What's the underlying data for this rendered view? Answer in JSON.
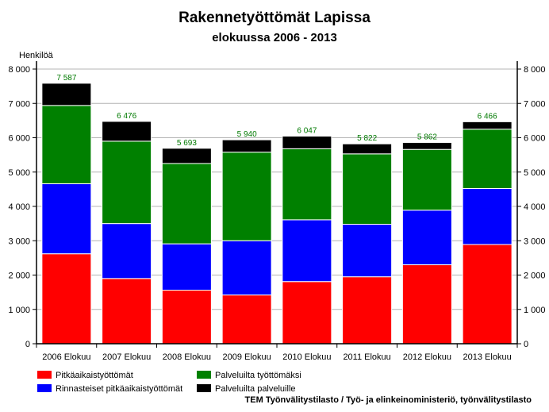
{
  "chart_data": {
    "type": "bar",
    "stacked": true,
    "title": "Rakennetyöttömät Lapissa",
    "subtitle": "elokuussa 2006 - 2013",
    "ylabel": "Henkilöä",
    "ylim": [
      0,
      8000
    ],
    "yticks": [
      0,
      1000,
      2000,
      3000,
      4000,
      5000,
      6000,
      7000,
      8000
    ],
    "ytick_labels": [
      "0",
      "1 000",
      "2 000",
      "3 000",
      "4 000",
      "5 000",
      "6 000",
      "7 000",
      "8 000"
    ],
    "grid": true,
    "legend_position": "bottom",
    "categories": [
      "2006 Elokuu",
      "2007 Elokuu",
      "2008 Elokuu",
      "2009 Elokuu",
      "2010 Elokuu",
      "2011 Elokuu",
      "2012 Elokuu",
      "2013 Elokuu"
    ],
    "series": [
      {
        "name": "Pitkäaikaistyöttömät",
        "color": "#ff0000",
        "values": [
          2620,
          1900,
          1560,
          1420,
          1810,
          1950,
          2300,
          2890
        ]
      },
      {
        "name": "Rinnasteiset pitkäaikaistyöttömät",
        "color": "#0000ff",
        "values": [
          2040,
          1600,
          1350,
          1580,
          1800,
          1530,
          1590,
          1630
        ]
      },
      {
        "name": "Palveluilta työttömäksi",
        "color": "#008000",
        "values": [
          2280,
          2400,
          2340,
          2580,
          2070,
          2050,
          1770,
          1730
        ]
      },
      {
        "name": "Palveluilta palveluille",
        "color": "#000000",
        "values": [
          647,
          576,
          443,
          360,
          367,
          292,
          202,
          216
        ]
      }
    ],
    "totals": [
      7587,
      6476,
      5693,
      5940,
      6047,
      5822,
      5862,
      6466
    ],
    "total_labels": [
      "7 587",
      "6 476",
      "5 693",
      "5 940",
      "6 047",
      "5 822",
      "5 862",
      "6 466"
    ],
    "source": "TEM Työnvälitystilasto / Työ- ja elinkeinoministeriö, työnvälitystilasto"
  }
}
